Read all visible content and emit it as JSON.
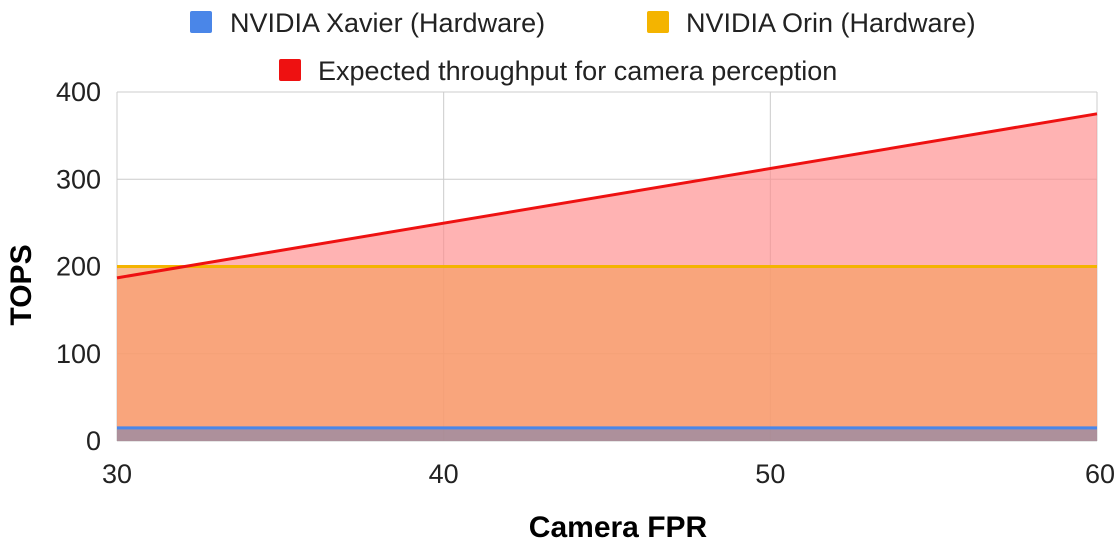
{
  "chart_data": {
    "type": "area",
    "xlabel": "Camera FPR",
    "ylabel": "TOPS",
    "xlim": [
      30,
      60
    ],
    "ylim": [
      0,
      400
    ],
    "x_ticks": [
      30,
      40,
      50,
      60
    ],
    "y_ticks": [
      0,
      100,
      200,
      300,
      400
    ],
    "grid": true,
    "legend_position": "top",
    "series": [
      {
        "name": "NVIDIA Xavier (Hardware)",
        "color": "#4a86e8",
        "x": [
          30,
          60
        ],
        "y": [
          15,
          15
        ]
      },
      {
        "name": "NVIDIA Orin (Hardware)",
        "color": "#f4b400",
        "x": [
          30,
          60
        ],
        "y": [
          200,
          200
        ]
      },
      {
        "name": "Expected throughput for camera perception",
        "color": "#ee1111",
        "x": [
          30,
          60
        ],
        "y": [
          187,
          375
        ]
      }
    ]
  }
}
